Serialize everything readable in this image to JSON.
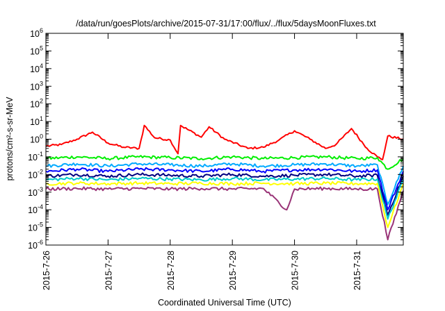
{
  "chart_data": {
    "type": "line",
    "title": "/data/run/goesPlots/archive/2015-07-31/17:00/flux/../flux/5daysMoonFluxes.txt",
    "xlabel": "Coordinated Universal Time (UTC)",
    "ylabel": "protons/cm²-s-sr-MeV",
    "yscale": "log",
    "ylim": [
      1e-06,
      1000000.0
    ],
    "xlim": [
      "2015-07-26 00:00",
      "2015-07-31 18:00"
    ],
    "x_ticks": [
      "2015-7-26",
      "2015-7-27",
      "2015-7-28",
      "2015-7-29",
      "2015-7-30",
      "2015-7-31"
    ],
    "y_ticks": [
      {
        "base": "10",
        "exp": "-6",
        "value": 1e-06
      },
      {
        "base": "10",
        "exp": "-5",
        "value": 1e-05
      },
      {
        "base": "10",
        "exp": "-4",
        "value": 0.0001
      },
      {
        "base": "10",
        "exp": "-3",
        "value": 0.001
      },
      {
        "base": "10",
        "exp": "-2",
        "value": 0.01
      },
      {
        "base": "10",
        "exp": "-1",
        "value": 0.1
      },
      {
        "base": "10",
        "exp": "0",
        "value": 1
      },
      {
        "base": "10",
        "exp": "1",
        "value": 10
      },
      {
        "base": "10",
        "exp": "2",
        "value": 100
      },
      {
        "base": "10",
        "exp": "3",
        "value": 1000
      },
      {
        "base": "10",
        "exp": "4",
        "value": 10000
      },
      {
        "base": "10",
        "exp": "5",
        "value": 100000
      },
      {
        "base": "10",
        "exp": "6",
        "value": 1000000
      }
    ],
    "grid": false,
    "legend": "none",
    "series": [
      {
        "color": "#ff0000",
        "x": [
          "2015-07-26 00:00",
          "2015-07-26 06:00",
          "2015-07-26 12:00",
          "2015-07-26 18:00",
          "2015-07-27 00:00",
          "2015-07-27 06:00",
          "2015-07-27 12:00",
          "2015-07-27 14:00",
          "2015-07-27 18:00",
          "2015-07-28 00:00",
          "2015-07-28 03:00",
          "2015-07-28 04:00",
          "2015-07-28 12:00",
          "2015-07-28 15:00",
          "2015-07-28 21:00",
          "2015-07-29 06:00",
          "2015-07-29 12:00",
          "2015-07-29 18:00",
          "2015-07-30 00:00",
          "2015-07-30 06:00",
          "2015-07-30 12:00",
          "2015-07-30 16:00",
          "2015-07-30 22:00",
          "2015-07-31 04:00",
          "2015-07-31 08:00",
          "2015-07-31 10:00",
          "2015-07-31 12:00",
          "2015-07-31 18:00"
        ],
        "values": [
          0.4,
          0.5,
          1.0,
          2.5,
          0.6,
          0.35,
          0.3,
          6.0,
          1.2,
          0.9,
          0.15,
          6.0,
          1.3,
          5.0,
          1.0,
          0.3,
          0.35,
          0.9,
          3.0,
          1.0,
          0.3,
          0.5,
          4.0,
          0.3,
          0.1,
          0.07,
          1.5,
          1.0
        ]
      },
      {
        "color": "#00ee00",
        "x": [
          "2015-07-26 00:00",
          "2015-07-26 12:00",
          "2015-07-27 00:00",
          "2015-07-27 12:00",
          "2015-07-28 00:00",
          "2015-07-28 12:00",
          "2015-07-29 00:00",
          "2015-07-29 12:00",
          "2015-07-30 00:00",
          "2015-07-30 12:00",
          "2015-07-31 00:00",
          "2015-07-31 08:00",
          "2015-07-31 12:00",
          "2015-07-31 18:00"
        ],
        "values": [
          0.08,
          0.1,
          0.08,
          0.1,
          0.09,
          0.08,
          0.1,
          0.08,
          0.09,
          0.1,
          0.08,
          0.09,
          0.02,
          0.08
        ]
      },
      {
        "color": "#00aaff",
        "x": [
          "2015-07-26 00:00",
          "2015-07-26 12:00",
          "2015-07-27 00:00",
          "2015-07-27 12:00",
          "2015-07-28 00:00",
          "2015-07-28 12:00",
          "2015-07-29 00:00",
          "2015-07-29 12:00",
          "2015-07-30 00:00",
          "2015-07-30 12:00",
          "2015-07-31 00:00",
          "2015-07-31 08:00",
          "2015-07-31 12:00",
          "2015-07-31 18:00"
        ],
        "values": [
          0.03,
          0.04,
          0.03,
          0.04,
          0.035,
          0.03,
          0.04,
          0.03,
          0.035,
          0.04,
          0.03,
          0.035,
          0.0002,
          0.03
        ]
      },
      {
        "color": "#0000ff",
        "x": [
          "2015-07-26 00:00",
          "2015-07-26 12:00",
          "2015-07-27 00:00",
          "2015-07-27 12:00",
          "2015-07-28 00:00",
          "2015-07-28 12:00",
          "2015-07-29 00:00",
          "2015-07-29 12:00",
          "2015-07-30 00:00",
          "2015-07-30 12:00",
          "2015-07-31 00:00",
          "2015-07-31 08:00",
          "2015-07-31 12:00",
          "2015-07-31 18:00"
        ],
        "values": [
          0.015,
          0.02,
          0.015,
          0.02,
          0.018,
          0.015,
          0.02,
          0.015,
          0.018,
          0.02,
          0.015,
          0.018,
          0.0001,
          0.015
        ]
      },
      {
        "color": "#000080",
        "x": [
          "2015-07-26 00:00",
          "2015-07-26 12:00",
          "2015-07-27 00:00",
          "2015-07-27 12:00",
          "2015-07-28 00:00",
          "2015-07-28 12:00",
          "2015-07-29 00:00",
          "2015-07-29 12:00",
          "2015-07-30 00:00",
          "2015-07-30 12:00",
          "2015-07-31 00:00",
          "2015-07-31 08:00",
          "2015-07-31 12:00",
          "2015-07-31 18:00"
        ],
        "values": [
          0.008,
          0.01,
          0.008,
          0.01,
          0.009,
          0.008,
          0.01,
          0.008,
          0.009,
          0.01,
          0.008,
          0.009,
          5e-05,
          0.008
        ]
      },
      {
        "color": "#00cccc",
        "x": [
          "2015-07-26 00:00",
          "2015-07-26 12:00",
          "2015-07-27 00:00",
          "2015-07-27 12:00",
          "2015-07-28 00:00",
          "2015-07-28 12:00",
          "2015-07-29 00:00",
          "2015-07-29 12:00",
          "2015-07-30 00:00",
          "2015-07-30 12:00",
          "2015-07-31 00:00",
          "2015-07-31 08:00",
          "2015-07-31 12:00",
          "2015-07-31 18:00"
        ],
        "values": [
          0.005,
          0.006,
          0.005,
          0.006,
          0.0055,
          0.005,
          0.006,
          0.005,
          0.0055,
          0.006,
          0.005,
          0.0055,
          3e-05,
          0.005
        ]
      },
      {
        "color": "#ffff00",
        "x": [
          "2015-07-26 00:00",
          "2015-07-26 12:00",
          "2015-07-27 00:00",
          "2015-07-27 12:00",
          "2015-07-28 00:00",
          "2015-07-28 12:00",
          "2015-07-29 00:00",
          "2015-07-29 12:00",
          "2015-07-30 00:00",
          "2015-07-30 12:00",
          "2015-07-31 00:00",
          "2015-07-31 08:00",
          "2015-07-31 12:00",
          "2015-07-31 18:00"
        ],
        "values": [
          0.003,
          0.0032,
          0.003,
          0.0032,
          0.003,
          0.0032,
          0.003,
          0.0032,
          0.003,
          0.0032,
          0.003,
          0.0031,
          1e-05,
          0.003
        ]
      },
      {
        "color": "#993377",
        "x": [
          "2015-07-26 00:00",
          "2015-07-26 12:00",
          "2015-07-27 00:00",
          "2015-07-27 12:00",
          "2015-07-28 00:00",
          "2015-07-28 12:00",
          "2015-07-29 00:00",
          "2015-07-29 12:00",
          "2015-07-29 21:00",
          "2015-07-30 00:00",
          "2015-07-30 12:00",
          "2015-07-31 00:00",
          "2015-07-31 08:00",
          "2015-07-31 12:00",
          "2015-07-31 18:00"
        ],
        "values": [
          0.0015,
          0.0016,
          0.0015,
          0.0016,
          0.0015,
          0.0016,
          0.0015,
          0.0016,
          0.0001,
          0.0015,
          0.0016,
          0.0015,
          0.0015,
          2e-06,
          0.0012
        ]
      }
    ]
  }
}
